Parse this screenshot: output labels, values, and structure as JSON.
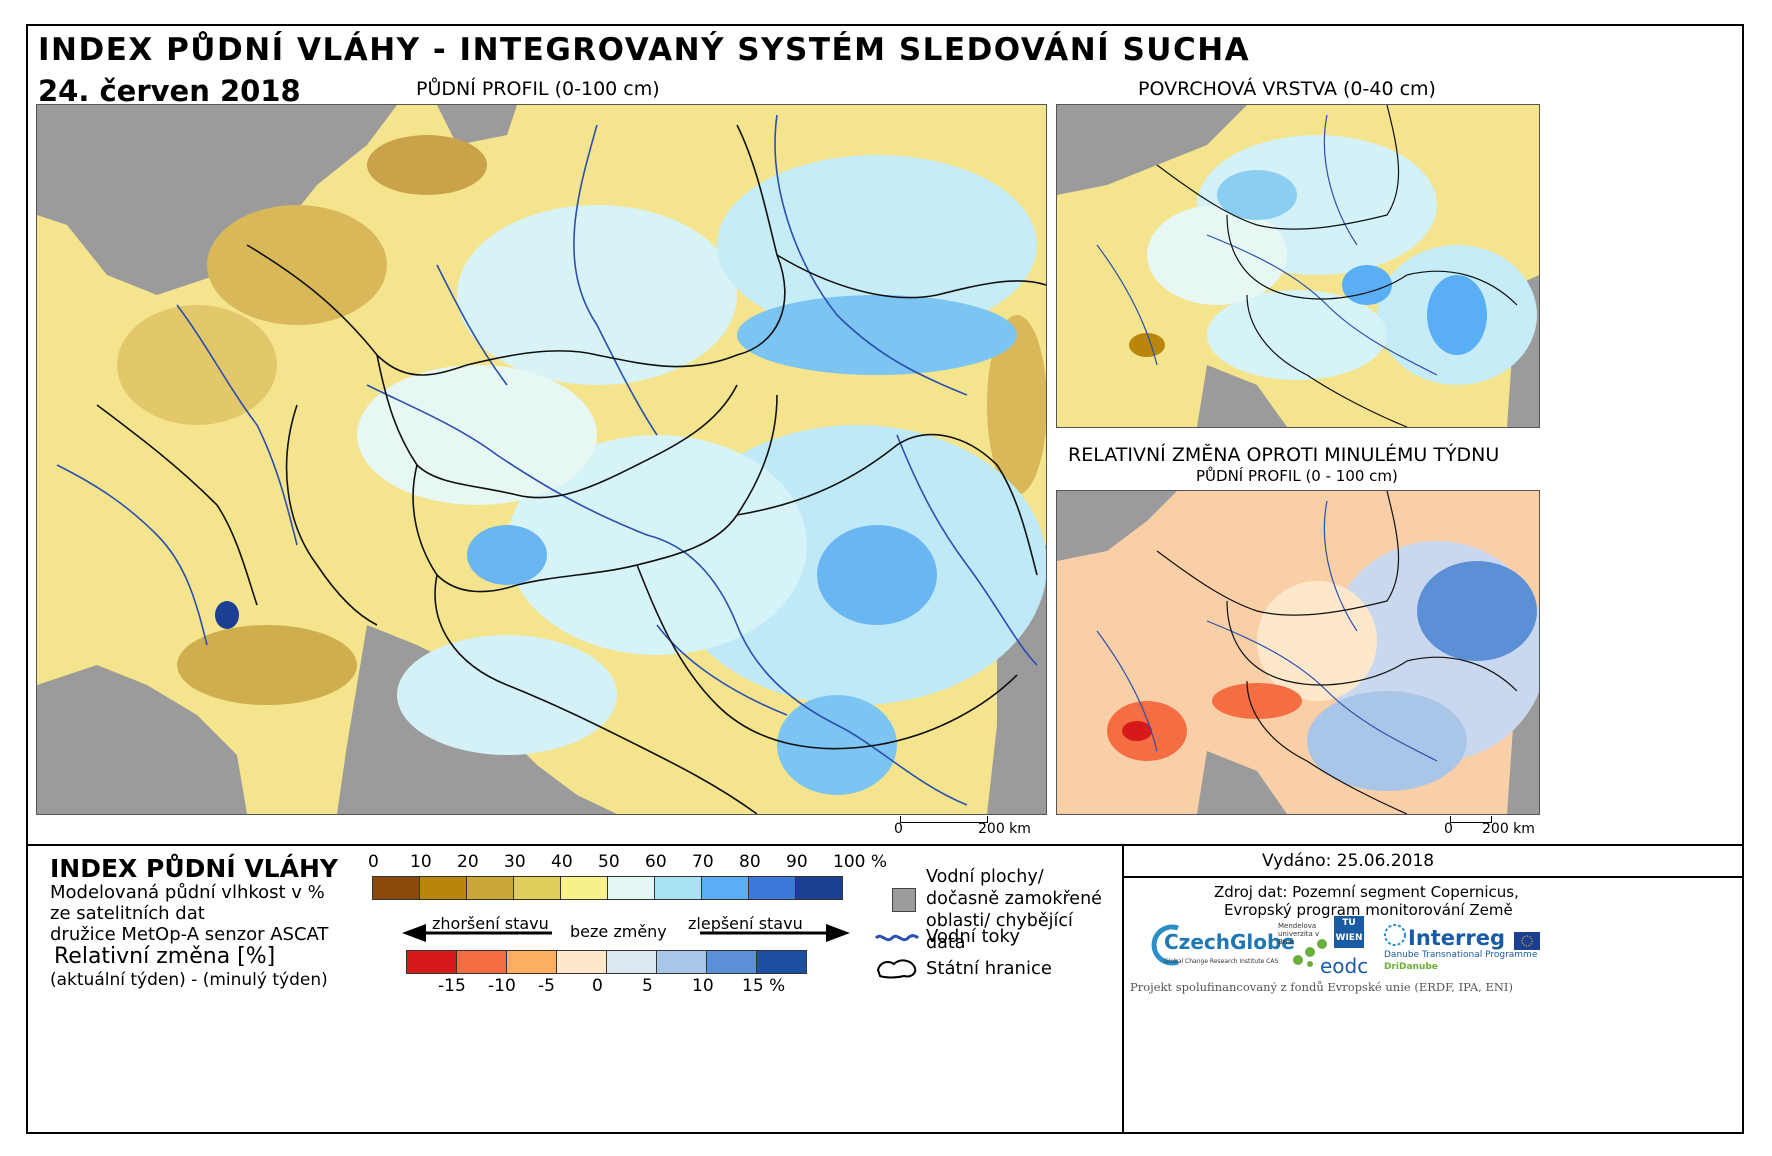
{
  "header": {
    "title": "INDEX PŮDNÍ VLÁHY - INTEGROVANÝ SYSTÉM SLEDOVÁNÍ SUCHA",
    "date": "24. červen 2018"
  },
  "maps": {
    "main_title": "PŮDNÍ PROFIL (0-100 cm)",
    "surface_title": "POVRCHOVÁ VRSTVA (0-40 cm)",
    "change_title": "RELATIVNÍ ZMĚNA OPROTI MINULÉMU TÝDNU",
    "change_subtitle": "PŮDNÍ PROFIL (0 - 100 cm)",
    "scale_main": {
      "zero": "0",
      "end": "200 km"
    },
    "scale_small": {
      "zero": "0",
      "end": "200 km"
    }
  },
  "legend": {
    "title": "INDEX PŮDNÍ VLÁHY",
    "desc": [
      "Modelovaná půdní vlhkost v %",
      "ze satelitních dat",
      "družice MetOp-A senzor ASCAT"
    ],
    "rel_title": "Relativní změna [%]",
    "rel_desc": "(aktuální týden) - (minulý týden)",
    "index_ticks": [
      "0",
      "10",
      "20",
      "30",
      "40",
      "50",
      "60",
      "70",
      "80",
      "90",
      "100 %"
    ],
    "index_colors": [
      "#8b4a0c",
      "#b8860b",
      "#c9a639",
      "#e0cd5a",
      "#f7f08c",
      "#e3f7f5",
      "#a7e3f3",
      "#5aaef5",
      "#3c78d8",
      "#1c3f94"
    ],
    "arrow_worse": "zhoršení stavu",
    "arrow_none": "beze změny",
    "arrow_better": "zlepšení stavu",
    "change_ticks": [
      "-15",
      "-10",
      "-5",
      "0",
      "5",
      "10",
      "15 %"
    ],
    "change_colors": [
      "#d7191c",
      "#f46d43",
      "#fdae61",
      "#fee8cc",
      "#dde8f2",
      "#a9c5e8",
      "#5b8fd6",
      "#1c4f9f"
    ],
    "water_areas": "Vodní plochy/ dočasně zamokřené oblasti/ chybějící data",
    "rivers": "Vodní toky",
    "borders": "Státní hranice"
  },
  "footer": {
    "issued": "Vydáno: 25.06.2018",
    "source1": "Zdroj dat: Pozemní segment Copernicus,",
    "source2": "Evropský program monitorování Země",
    "funding": "Projekt spolufinancovaný z fondů Evropské unie (ERDF, IPA, ENI)",
    "logos": {
      "czechglobe": "CzechGlobe",
      "czechglobe_sub": "Global Change Research Institute CAS",
      "mendel": "Mendelova univerzita v Brně",
      "tuwien": "TU WIEN",
      "eodc": "eodc",
      "interreg": "Interreg",
      "interreg_sub1": "Danube Transnational Programme",
      "interreg_sub2": "DriDanube"
    }
  }
}
